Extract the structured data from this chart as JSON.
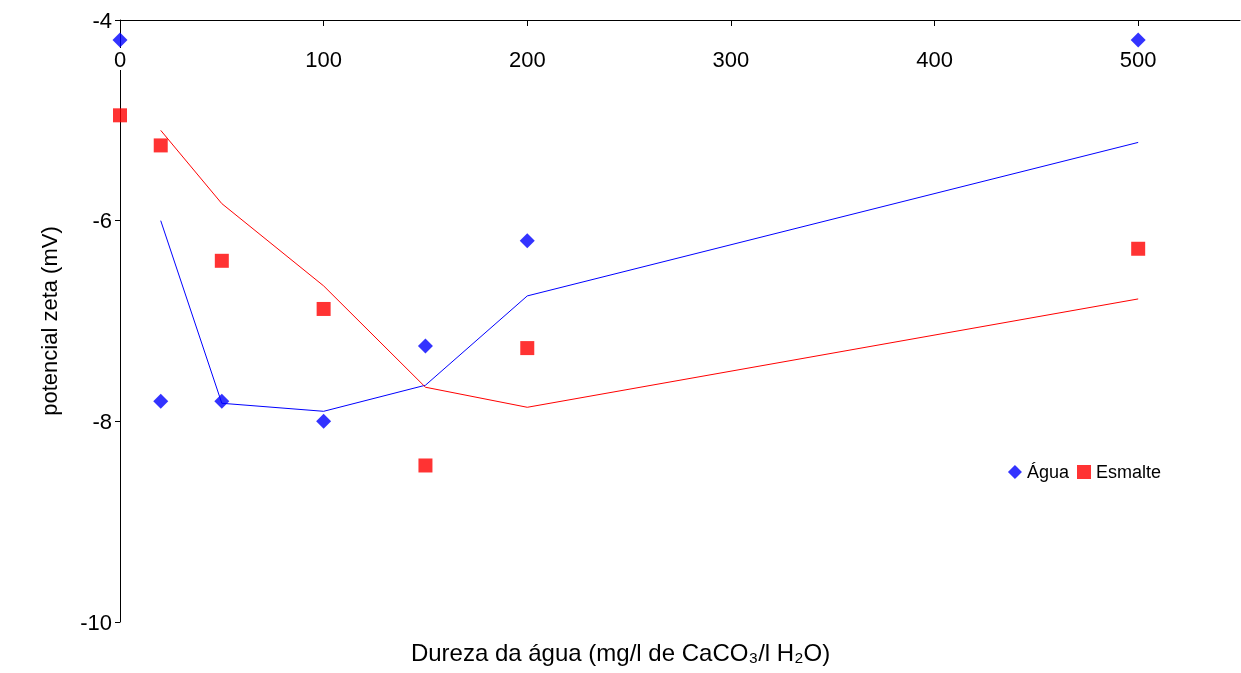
{
  "chart_data": {
    "type": "scatter",
    "xlabel": "Dureza da água (mg/l de CaCO₃/l H₂O)",
    "ylabel": "potencial zeta (mV)",
    "xlim": [
      0,
      550
    ],
    "xticks": [
      0,
      100,
      200,
      300,
      400,
      500
    ],
    "ylim": [
      -10,
      -4
    ],
    "yticks": [
      -10,
      -8,
      -6,
      -4
    ],
    "grid": false,
    "legend": "right",
    "series": [
      {
        "name": "Água",
        "marker": "diamond",
        "color": "#0000ff",
        "x": [
          0,
          20,
          50,
          100,
          150,
          200,
          500
        ],
        "values": [
          -4.2,
          -7.8,
          -7.8,
          -8.0,
          -7.25,
          -6.2,
          -4.2
        ]
      },
      {
        "name": "Esmalte",
        "marker": "square",
        "color": "#ff0000",
        "x": [
          0,
          20,
          50,
          100,
          150,
          200,
          500
        ],
        "values": [
          -4.95,
          -5.25,
          -6.4,
          -6.88,
          -8.44,
          -7.27,
          -6.28
        ]
      },
      {
        "type": "line",
        "marker": "none",
        "color": "#0000ff",
        "x": [
          20,
          50,
          100,
          150,
          200,
          500
        ],
        "values": [
          -6.0,
          -7.82,
          -7.9,
          -7.64,
          -6.75,
          -5.22
        ]
      },
      {
        "type": "line",
        "marker": "none",
        "color": "#ff0000",
        "x": [
          20,
          50,
          100,
          150,
          200,
          500
        ],
        "values": [
          -5.1,
          -5.83,
          -6.65,
          -7.66,
          -7.86,
          -6.78
        ]
      }
    ]
  }
}
